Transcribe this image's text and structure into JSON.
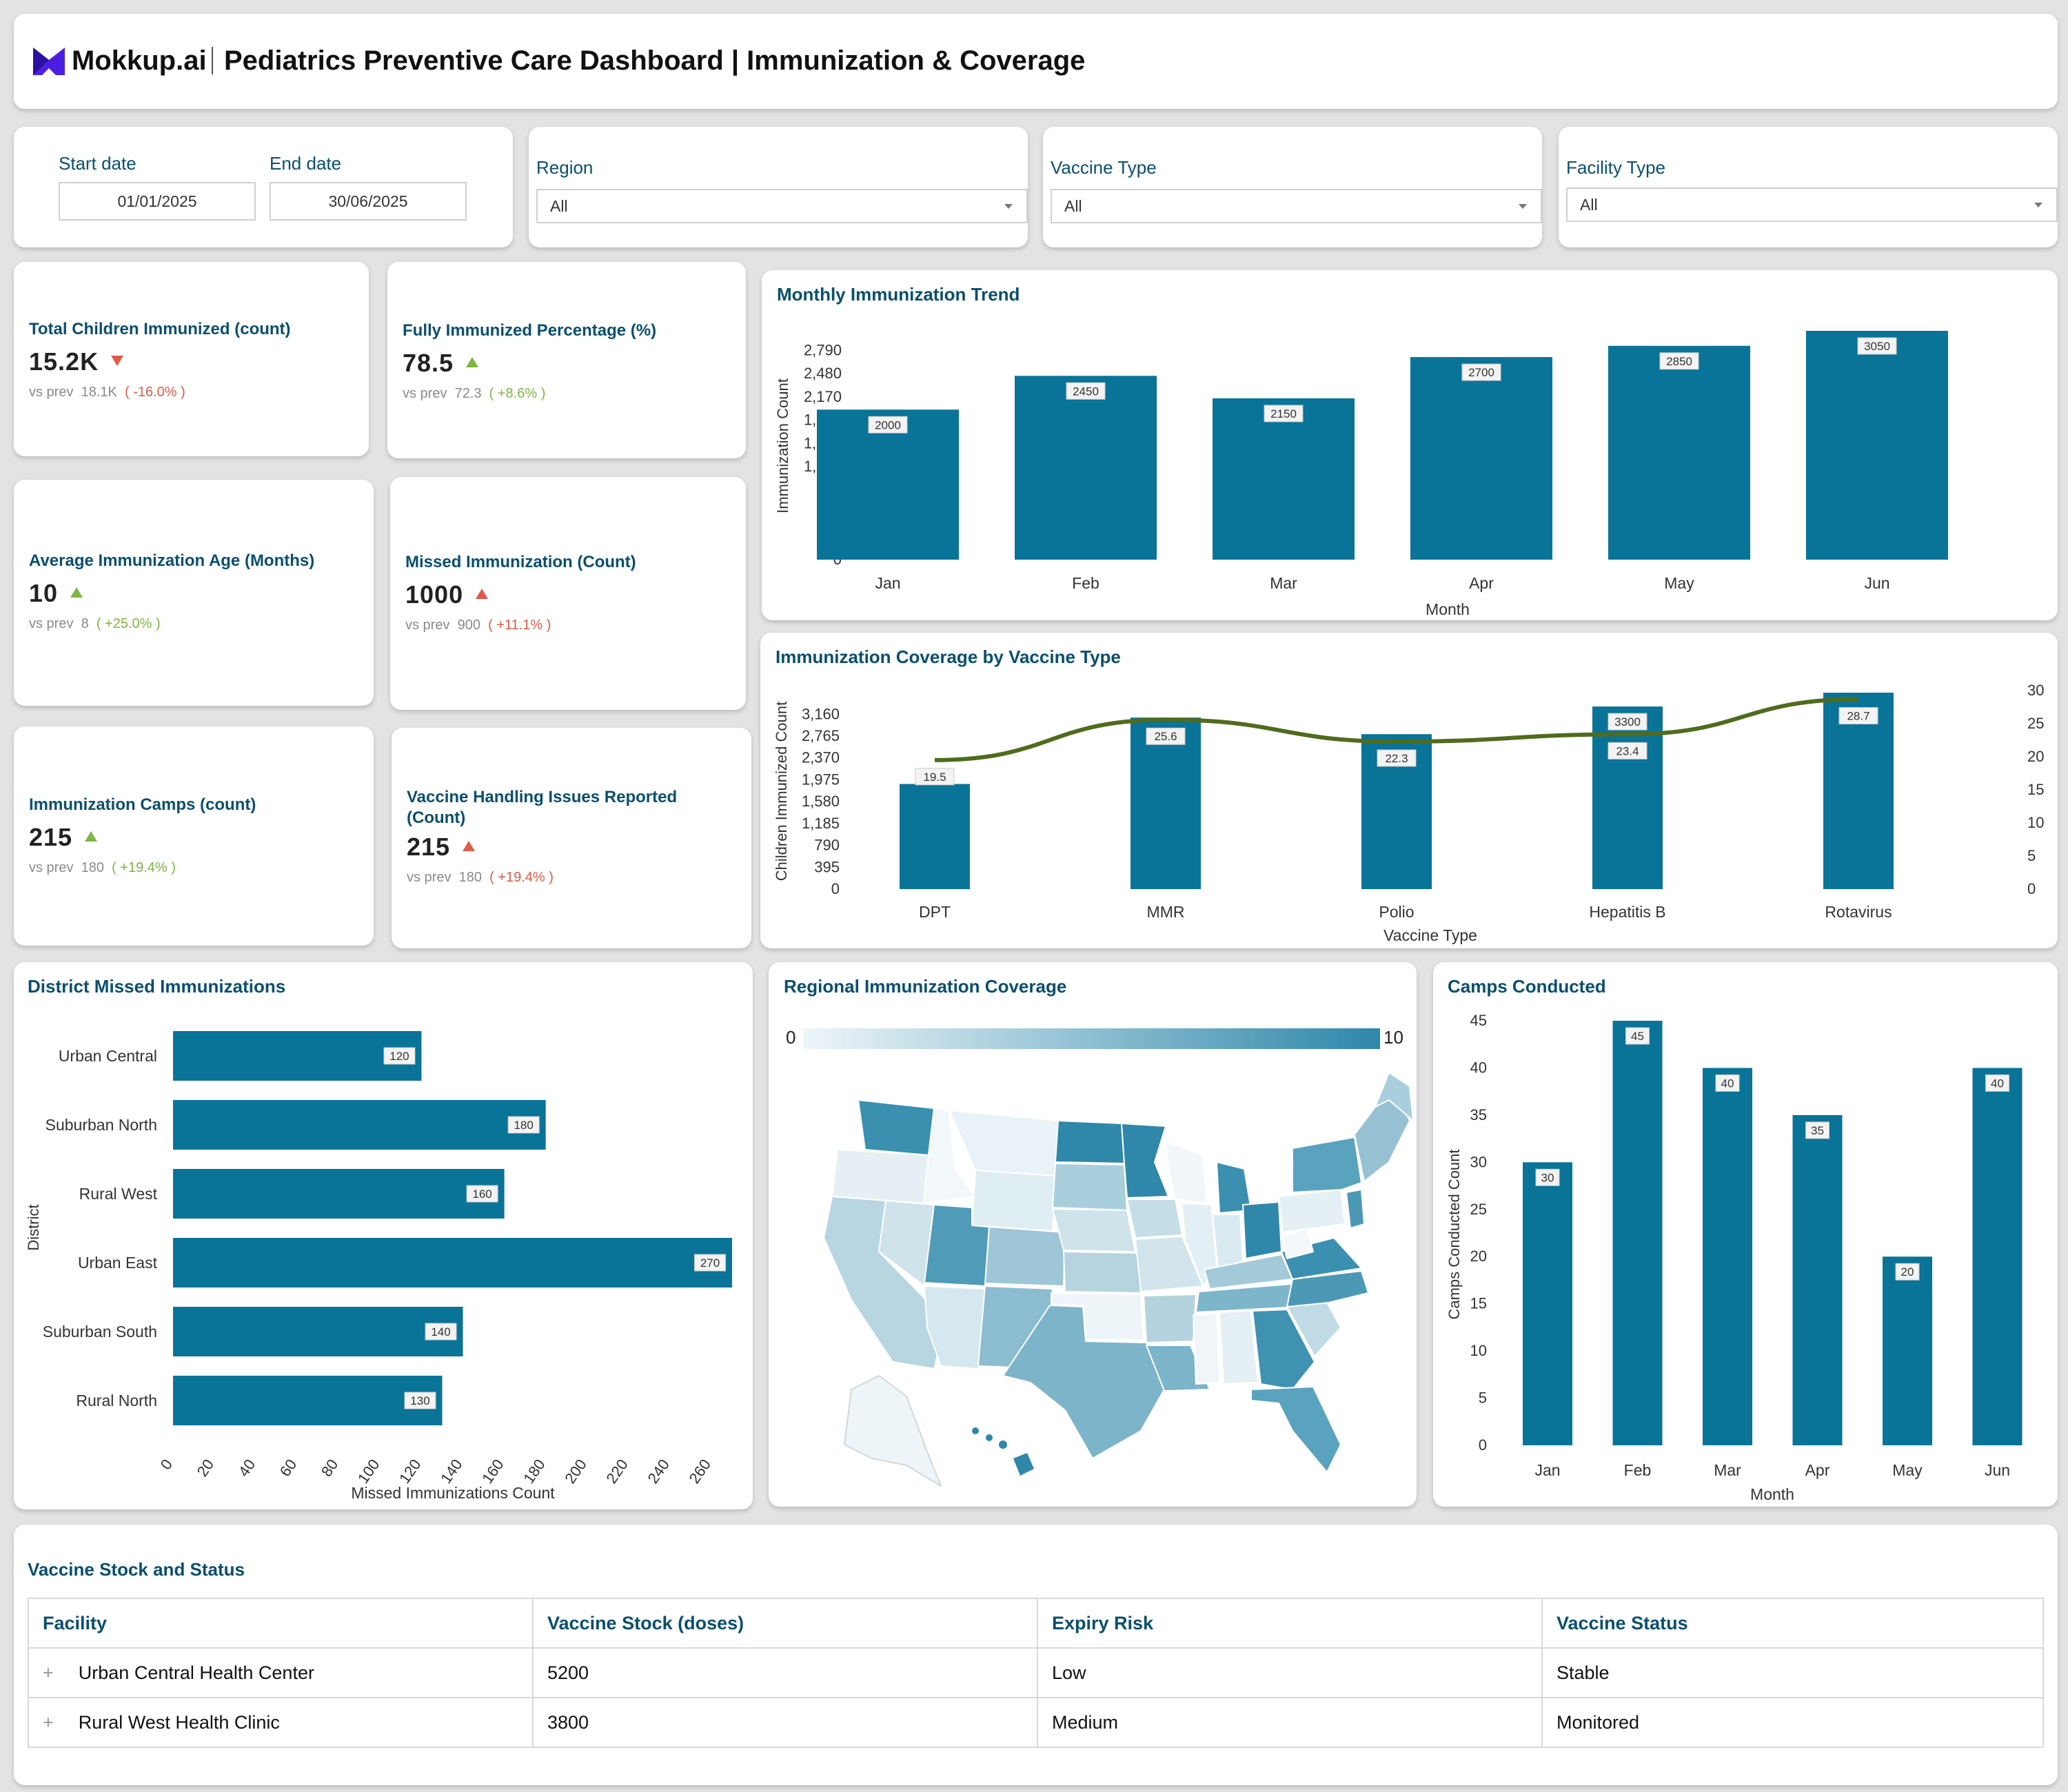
{
  "header": {
    "brand": "Mokkup.ai",
    "title": "Pediatrics Preventive Care Dashboard | Immunization & Coverage"
  },
  "filters": {
    "start_date_label": "Start date",
    "start_date": "01/01/2025",
    "end_date_label": "End date",
    "end_date": "30/06/2025",
    "region_label": "Region",
    "region_value": "All",
    "vaccine_type_label": "Vaccine Type",
    "vaccine_type_value": "All",
    "facility_type_label": "Facility Type",
    "facility_type_value": "All"
  },
  "kpis": [
    {
      "title": "Total Children Immunized (count)",
      "value": "15.2K",
      "trend": "down",
      "prev_label": "vs prev",
      "prev_value": "18.1K",
      "change": "( -16.0% )",
      "change_color": "#e05a47"
    },
    {
      "title": "Fully Immunized Percentage (%)",
      "value": "78.5",
      "trend": "up",
      "prev_label": "vs prev",
      "prev_value": "72.3",
      "change": "( +8.6% )",
      "change_color": "#7fb542"
    },
    {
      "title": "Average Immunization Age (Months)",
      "value": "10",
      "trend": "up",
      "prev_label": "vs prev",
      "prev_value": "8",
      "change": "( +25.0% )",
      "change_color": "#7fb542"
    },
    {
      "title": "Missed Immunization (Count)",
      "value": "1000",
      "trend": "up",
      "prev_label": "vs prev",
      "prev_value": "900",
      "change": "( +11.1% )",
      "change_color": "#e05a47"
    },
    {
      "title": "Immunization Camps (count)",
      "value": "215",
      "trend": "up",
      "prev_label": "vs prev",
      "prev_value": "180",
      "change": "( +19.4% )",
      "change_color": "#7fb542"
    },
    {
      "title_line1": "Vaccine Handling Issues Reported",
      "title_line2": "(Count)",
      "value": "215",
      "trend": "up",
      "prev_label": "vs prev",
      "prev_value": "180",
      "change": "( +19.4% )",
      "change_color": "#e05a47"
    }
  ],
  "chart_data": [
    {
      "id": "monthly_trend",
      "type": "bar",
      "title": "Monthly Immunization Trend",
      "xlabel": "Month",
      "ylabel": "Immunization Count",
      "categories": [
        "Jan",
        "Feb",
        "Mar",
        "Apr",
        "May",
        "Jun"
      ],
      "values": [
        2000,
        2450,
        2150,
        2700,
        2850,
        3050
      ],
      "yticks": [
        0,
        310,
        620,
        930,
        1240,
        1550,
        1860,
        2170,
        2480,
        2790
      ],
      "ylim": [
        0,
        3050
      ],
      "color": "#0a7398"
    },
    {
      "id": "coverage_by_vaccine",
      "type": "bar",
      "title": "Immunization Coverage by Vaccine Type",
      "xlabel": "Vaccine Type",
      "ylabel": "Children Immunized Count",
      "categories": [
        "DPT",
        "MMR",
        "Polio",
        "Hepatitis B",
        "Rotavirus"
      ],
      "series": [
        {
          "values": [
            1900,
            3100,
            2800,
            3300,
            3550
          ],
          "axis": "left"
        },
        {
          "values": [
            19.5,
            25.6,
            22.3,
            23.4,
            28.7
          ],
          "axis": "right",
          "render": "line"
        }
      ],
      "bar_labels": [
        "",
        "",
        "",
        "3300",
        ""
      ],
      "yticks": [
        0,
        395,
        790,
        1185,
        1580,
        1975,
        2370,
        2765,
        3160
      ],
      "ylim": [
        0,
        3550
      ],
      "y2ticks": [
        0,
        5,
        10,
        15,
        20,
        25,
        30
      ],
      "y2lim": [
        0,
        30
      ],
      "bar_color": "#0a7398",
      "line_color": "#4f6b1c"
    },
    {
      "id": "district_missed",
      "type": "bar",
      "orientation": "horizontal",
      "title": "District Missed Immunizations",
      "xlabel": "Missed Immunizations Count",
      "ylabel": "District",
      "categories": [
        "Urban Central",
        "Suburban North",
        "Rural West",
        "Urban East",
        "Suburban South",
        "Rural North"
      ],
      "values": [
        120,
        180,
        160,
        270,
        140,
        130
      ],
      "xticks": [
        0,
        20,
        40,
        60,
        80,
        100,
        120,
        140,
        160,
        180,
        200,
        220,
        240,
        260
      ],
      "xlim": [
        0,
        270
      ],
      "color": "#0a7398"
    },
    {
      "id": "camps_conducted",
      "type": "bar",
      "title": "Camps Conducted",
      "xlabel": "Month",
      "ylabel": "Camps Conducted Count",
      "categories": [
        "Jan",
        "Feb",
        "Mar",
        "Apr",
        "May",
        "Jun"
      ],
      "values": [
        30,
        45,
        40,
        35,
        20,
        40
      ],
      "yticks": [
        0,
        5,
        10,
        15,
        20,
        25,
        30,
        35,
        40,
        45
      ],
      "ylim": [
        0,
        45
      ],
      "color": "#0a7398"
    }
  ],
  "map": {
    "title": "Regional Immunization Coverage",
    "scale_min": "0",
    "scale_max": "10",
    "color_low": "#eef6f9",
    "color_high": "#2d87aa"
  },
  "table": {
    "title": "Vaccine Stock and Status",
    "columns": [
      "Facility",
      "Vaccine Stock (doses)",
      "Expiry Risk",
      "Vaccine Status"
    ],
    "rows": [
      [
        "Urban Central Health Center",
        "5200",
        "Low",
        "Stable"
      ],
      [
        "Rural West Health Clinic",
        "3800",
        "Medium",
        "Monitored"
      ]
    ]
  }
}
